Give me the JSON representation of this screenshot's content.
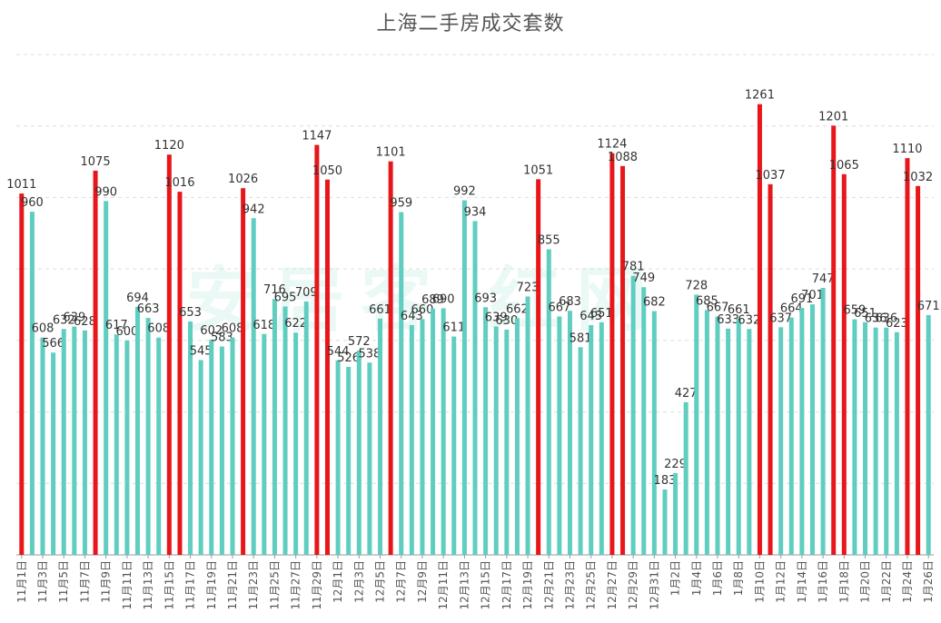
{
  "chart_data": {
    "type": "bar",
    "title": "上海二手房成交套数",
    "watermark": "安居客 红网",
    "xlabel": "",
    "ylabel": "",
    "ylim": [
      0,
      1400
    ],
    "gridlines": [
      200,
      400,
      600,
      800,
      1000,
      1200,
      1400
    ],
    "grid": true,
    "colors": {
      "normal": "#5fcdc0",
      "highlight": "#e8161a",
      "axis": "#999999",
      "grid": "#dddddd",
      "label": "#333333"
    },
    "categories": [
      "11月1日",
      "11月2日",
      "11月3日",
      "11月4日",
      "11月5日",
      "11月6日",
      "11月7日",
      "11月8日",
      "11月9日",
      "11月10日",
      "11月11日",
      "11月12日",
      "11月13日",
      "11月14日",
      "11月15日",
      "11月16日",
      "11月17日",
      "11月18日",
      "11月19日",
      "11月20日",
      "11月21日",
      "11月22日",
      "11月23日",
      "11月24日",
      "11月25日",
      "11月26日",
      "11月27日",
      "11月28日",
      "11月29日",
      "11月30日",
      "12月1日",
      "12月2日",
      "12月3日",
      "12月4日",
      "12月5日",
      "12月6日",
      "12月7日",
      "12月8日",
      "12月9日",
      "12月10日",
      "12月11日",
      "12月12日",
      "12月13日",
      "12月14日",
      "12月15日",
      "12月16日",
      "12月17日",
      "12月18日",
      "12月19日",
      "12月20日",
      "12月21日",
      "12月22日",
      "12月23日",
      "12月24日",
      "12月25日",
      "12月26日",
      "12月27日",
      "12月28日",
      "12月29日",
      "12月30日",
      "12月31日",
      "1月1日",
      "1月2日",
      "1月3日",
      "1月4日",
      "1月5日",
      "1月6日",
      "1月7日",
      "1月8日",
      "1月9日",
      "1月10日",
      "1月11日",
      "1月12日",
      "1月13日",
      "1月14日",
      "1月15日",
      "1月16日",
      "1月17日",
      "1月18日",
      "1月19日",
      "1月20日",
      "1月21日",
      "1月22日",
      "1月23日",
      "1月24日",
      "1月25日",
      "1月26日"
    ],
    "tick_labels": [
      "11月1日",
      "11月3日",
      "11月5日",
      "11月7日",
      "11月9日",
      "11月11日",
      "11月13日",
      "11月15日",
      "11月17日",
      "11月19日",
      "11月21日",
      "11月23日",
      "11月25日",
      "11月27日",
      "11月29日",
      "12月1日",
      "12月3日",
      "12月5日",
      "12月7日",
      "12月9日",
      "12月11日",
      "12月13日",
      "12月15日",
      "12月17日",
      "12月19日",
      "12月21日",
      "12月23日",
      "12月25日",
      "12月27日",
      "12月29日",
      "12月31日",
      "1月2日",
      "1月4日",
      "1月6日",
      "1月8日",
      "1月10日",
      "1月12日",
      "1月14日",
      "1月16日",
      "1月18日",
      "1月20日",
      "1月22日",
      "1月24日",
      "1月26日"
    ],
    "values": [
      1011,
      960,
      608,
      566,
      632,
      639,
      628,
      1075,
      990,
      617,
      600,
      694,
      663,
      608,
      1120,
      1016,
      653,
      545,
      602,
      583,
      608,
      1026,
      942,
      618,
      716,
      695,
      622,
      709,
      1147,
      1050,
      544,
      526,
      572,
      538,
      661,
      1101,
      959,
      643,
      660,
      689,
      690,
      611,
      992,
      934,
      693,
      639,
      630,
      662,
      723,
      1051,
      855,
      667,
      683,
      581,
      643,
      651,
      1124,
      1088,
      781,
      749,
      682,
      183,
      229,
      427,
      728,
      685,
      667,
      633,
      661,
      632,
      1261,
      1037,
      637,
      664,
      691,
      701,
      747,
      1201,
      1065,
      659,
      651,
      636,
      636,
      623,
      1110,
      1032,
      671
    ],
    "highlight_indices": [
      0,
      7,
      14,
      15,
      21,
      28,
      29,
      35,
      49,
      56,
      57,
      70,
      71,
      77,
      78,
      84,
      85
    ]
  }
}
